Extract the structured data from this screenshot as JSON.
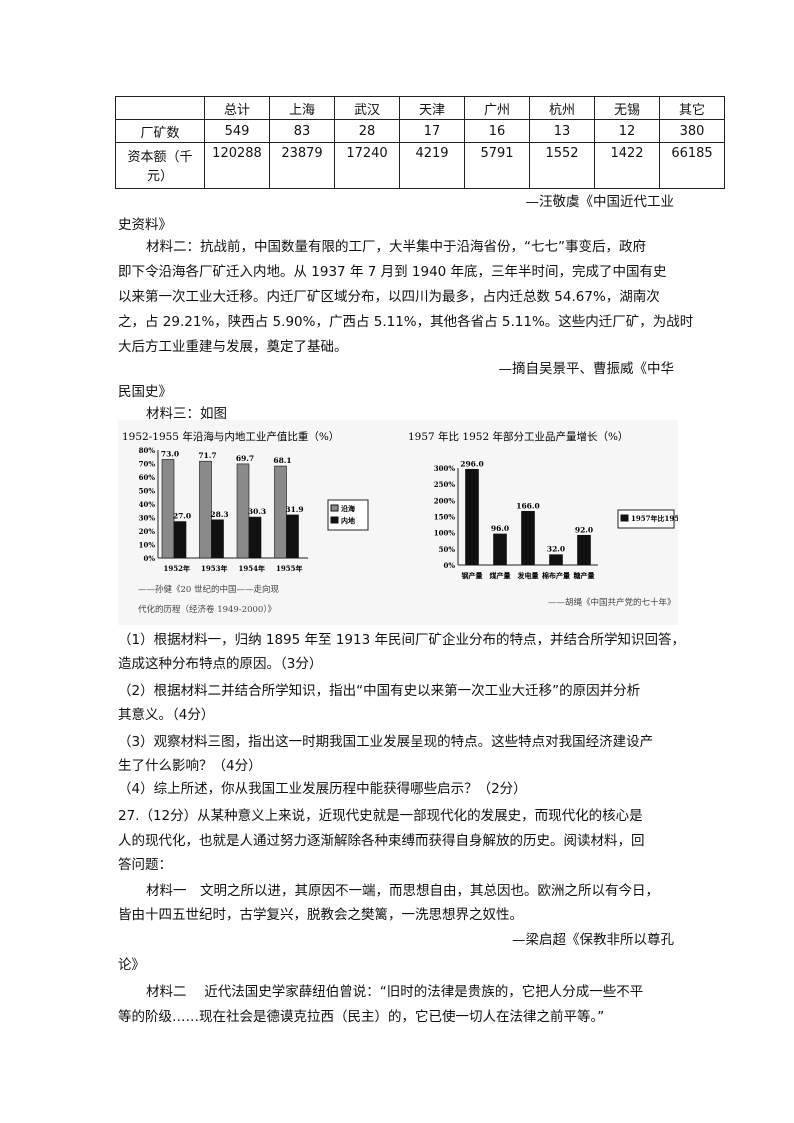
{
  "table": {
    "headers": [
      "",
      "总计",
      "上海",
      "武汉",
      "天津",
      "广州",
      "杭州",
      "无锡",
      "其它"
    ],
    "rows": [
      [
        "厂矿数",
        "549",
        "83",
        "28",
        "17",
        "16",
        "13",
        "12",
        "380"
      ],
      [
        "资本额（千元）",
        "120288",
        "23879",
        "17240",
        "4219",
        "5791",
        "1552",
        "1422",
        "66185"
      ]
    ]
  },
  "lines": [
    "—汪敬虞《中国近代工业",
    "史资料》",
    "材料二：抗战前，中国数量有限的工厂，大半集中于沿海省份，“七七”事变后，政府",
    "即下令沿海各厂矿迁入内地。从 1937 年 7 月到 1940 年底，三年半时间，完成了中国有史",
    "以来第一次工业大迁移。内迁厂矿区域分布，以四川为最多，占内迁总数 54.67%，湖南次",
    "之，占 29.21%，陕西占 5.90%，广西占 5.11%，其他各省占 5.11%。这些内迁厂矿，为战时",
    "大后方工业重建与发展，奠定了基础。",
    "—摘自吴景平、曹振威《中华",
    "民国史》",
    "材料三：如图",
    "（1）根据材料一，归纳 1895 年至 1913 年民间厂矿企业分布的特点，并结合所学知识回答，",
    "造成这种分布特点的原因。（3分）",
    "（2）根据材料二并结合所学知识，指出“中国有史以来第一次工业大迁移”的原因并分析",
    "其意义。（4分）",
    "（3）观察材料三图，指出这一时期我国工业发展呈现的特点。这些特点对我国经济建设产",
    "生了什么影响？（4分）",
    "（4）综上所述，你从我国工业发展历程中能获得哪些启示？（2分）",
    "27.（12分）从某种意义上来说，近现代史就是一部现代化的发展史，而现代化的核心是",
    "人的现代化，也就是人通过努力逐渐解除各种束缚而获得自身解放的历史。阅读材料，回",
    "答问题：",
    "材料一　文明之所以进，其原因不一端，而思想自由，其总因也。欧洲之所以有今日，",
    "皆由十四五世纪时，古学复兴，脱教会之樊篱，一洗思想界之奴性。",
    "—梁启超《保教非所以尊孔",
    "论》",
    "材料二　 近代法国史学家薛纽伯曾说：“旧时的法律是贵族的，它把人分成一些不平",
    "等的阶级……现在社会是德谟克拉西（民主）的，它已使一切人在法律之前平等。”"
  ],
  "chart_data": [
    {
      "type": "bar",
      "title": "1952-1955 年沿海与内地工业产值比重（%）",
      "categories": [
        "1952年",
        "1953年",
        "1954年",
        "1955年"
      ],
      "series": [
        {
          "name": "沿海",
          "values": [
            73.0,
            71.7,
            69.7,
            68.1
          ],
          "color": "#8a8a8a"
        },
        {
          "name": "内地",
          "values": [
            27.0,
            28.3,
            30.3,
            31.9
          ],
          "color": "#111111"
        }
      ],
      "yticks": [
        "0%",
        "10%",
        "20%",
        "30%",
        "40%",
        "50%",
        "60%",
        "70%",
        "80%"
      ],
      "ylim": [
        0,
        80
      ],
      "legend": "right",
      "source": [
        "——孙健《20 世纪的中国——走向现",
        "代化的历程（经济卷 1949-2000）》"
      ]
    },
    {
      "type": "bar",
      "title": "1957 年比 1952 年部分工业品产量增长（%）",
      "categories": [
        "钢产量",
        "煤产量",
        "发电量",
        "棉布产量",
        "糖产量"
      ],
      "series": [
        {
          "name": "1957年比1952年增长",
          "values": [
            296.0,
            96.0,
            166.0,
            32.0,
            92.0
          ],
          "color": "#111111"
        }
      ],
      "yticks": [
        "0%",
        "50%",
        "100%",
        "150%",
        "200%",
        "250%",
        "300%"
      ],
      "ylim": [
        0,
        300
      ],
      "legend": "right",
      "source": [
        "——胡绳《中国共产党的七十年》"
      ]
    }
  ]
}
